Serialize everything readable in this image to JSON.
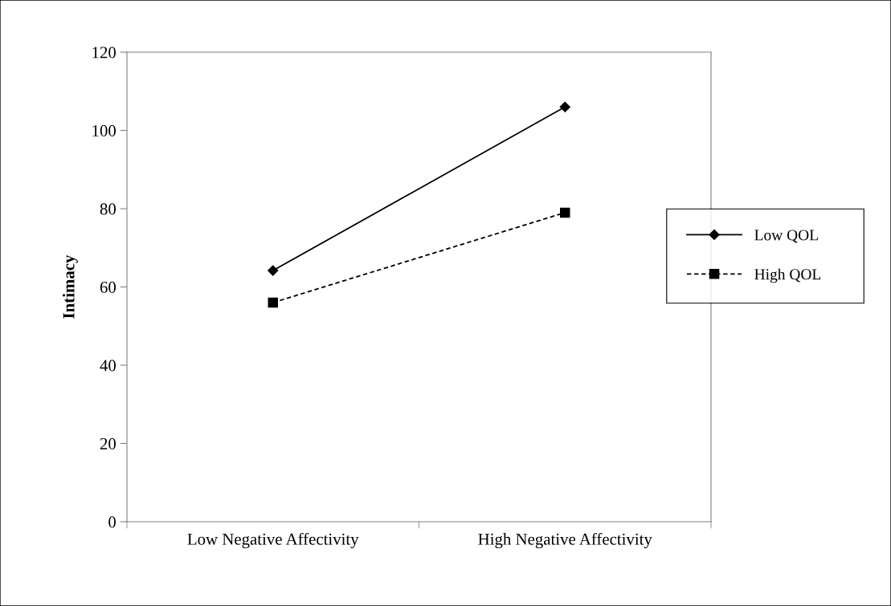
{
  "chart_data": {
    "type": "line",
    "ylabel": "Intimacy",
    "categories": [
      "Low Negative Affectivity",
      "High Negative Affectivity"
    ],
    "series": [
      {
        "name": "Low QOL",
        "color": "#000000",
        "values": [
          64.2,
          106
        ],
        "marker": "diamond",
        "line_style": "solid"
      },
      {
        "name": "High QOL",
        "color": "#000000",
        "values": [
          56,
          79
        ],
        "marker": "square",
        "line_style": "dashed"
      }
    ],
    "ylim": [
      0,
      120
    ],
    "yticks": [
      0,
      20,
      40,
      60,
      80,
      100,
      120
    ],
    "grid": false,
    "legend": "right"
  }
}
